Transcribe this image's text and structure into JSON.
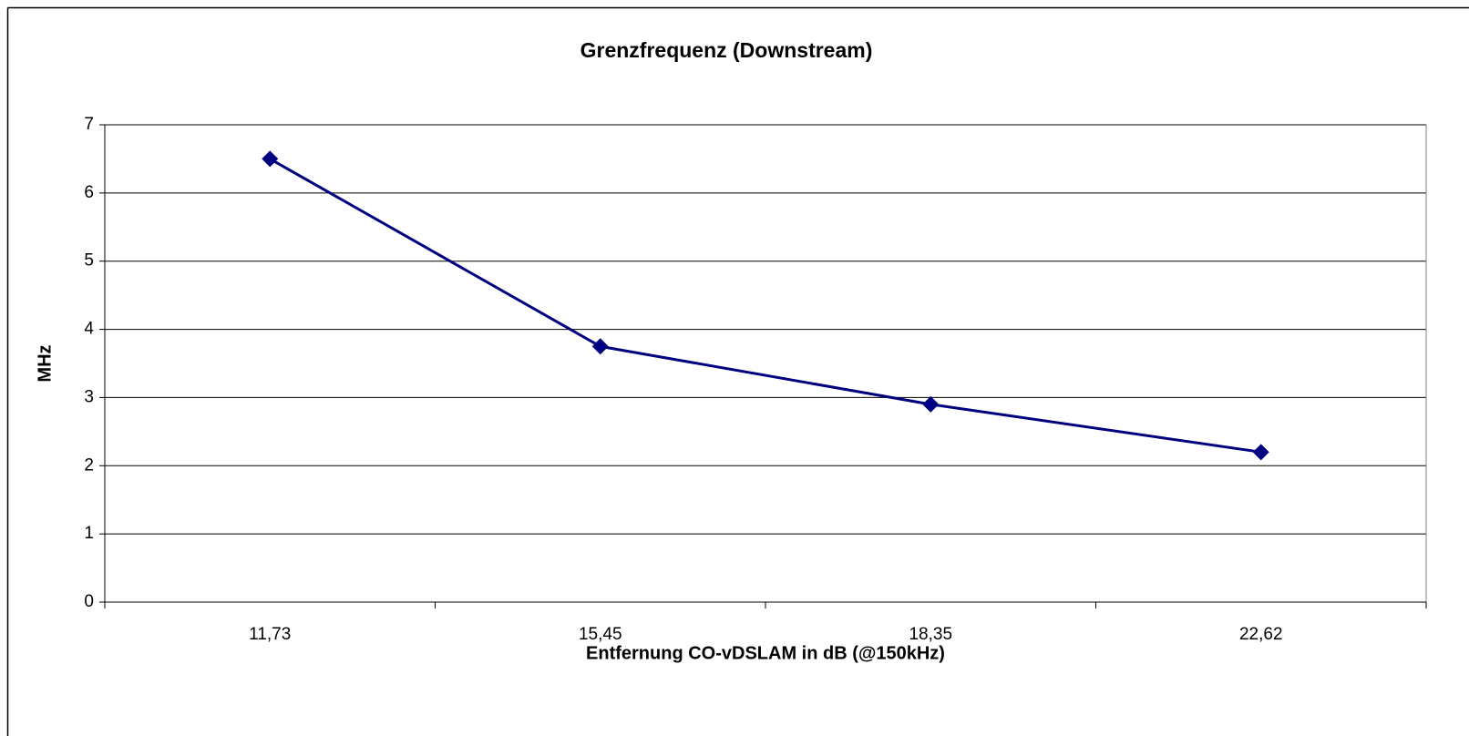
{
  "chart_data": {
    "type": "line",
    "title": "Grenzfrequenz (Downstream)",
    "x_label": "Entfernung CO-vDSLAM in dB (@150kHz)",
    "y_label": "MHz",
    "categories": [
      "11,73",
      "15,45",
      "18,35",
      "22,62"
    ],
    "series": [
      {
        "name": "Grenzfrequenz",
        "color": "#000080",
        "values": [
          6.5,
          3.75,
          2.9,
          2.2
        ]
      }
    ],
    "ylim": [
      0,
      7
    ],
    "yticks": [
      0,
      1,
      2,
      3,
      4,
      5,
      6,
      7
    ],
    "grid": true
  }
}
